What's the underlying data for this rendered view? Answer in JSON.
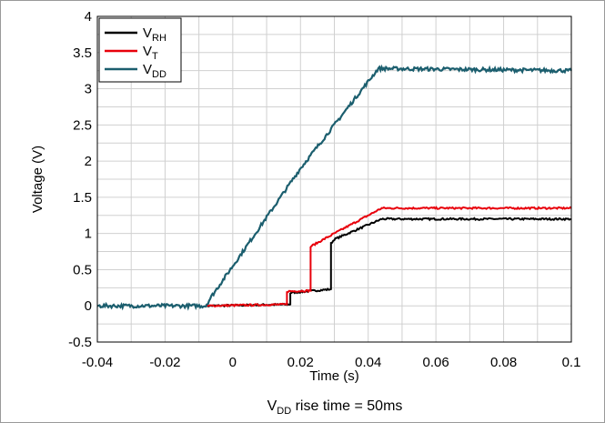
{
  "chart_data": {
    "type": "line",
    "title": "",
    "caption": {
      "main": "V",
      "sub": "DD",
      "rest": " rise time = 50ms"
    },
    "xlabel": "Time (s)",
    "ylabel": "Voltage (V)",
    "xlim": [
      -0.04,
      0.1
    ],
    "ylim": [
      -0.5,
      4
    ],
    "xticks": [
      "-0.04",
      "-0.02",
      "0",
      "0.02",
      "0.04",
      "0.06",
      "0.08",
      "0.1"
    ],
    "yticks": [
      "-0.5",
      "0",
      "0.5",
      "1",
      "1.5",
      "2",
      "2.5",
      "3",
      "3.5",
      "4"
    ],
    "grid": true,
    "legend_position": "top-left",
    "series": [
      {
        "name": "V",
        "name_sub": "RH",
        "color": "#000000",
        "x": [
          -0.008,
          0.017,
          0.017,
          0.029,
          0.029,
          0.03,
          0.044,
          0.1
        ],
        "y": [
          0.0,
          0.02,
          0.18,
          0.23,
          0.86,
          0.92,
          1.2,
          1.2
        ]
      },
      {
        "name": "V",
        "name_sub": "T",
        "color": "#e8000b",
        "x": [
          -0.008,
          0.016,
          0.016,
          0.023,
          0.023,
          0.03,
          0.044,
          0.1
        ],
        "y": [
          0.0,
          0.02,
          0.2,
          0.21,
          0.82,
          1.0,
          1.35,
          1.35
        ]
      },
      {
        "name": "V",
        "name_sub": "DD",
        "color": "#1b5e6e",
        "x": [
          -0.04,
          -0.008,
          -0.006,
          0.0,
          0.02,
          0.04,
          0.043,
          0.1
        ],
        "y": [
          0.0,
          0.0,
          0.15,
          0.55,
          1.9,
          3.1,
          3.28,
          3.25
        ]
      }
    ]
  }
}
